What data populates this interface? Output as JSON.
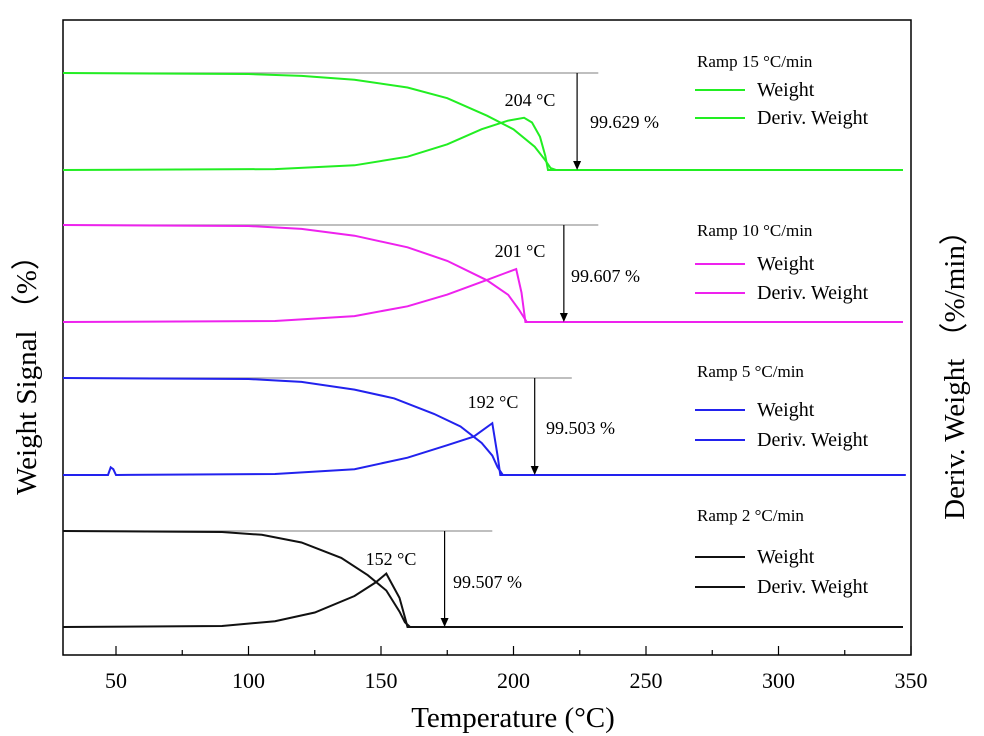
{
  "chart_data": {
    "type": "line",
    "title": "",
    "xlabel": "Temperature (°C)",
    "ylabel_left": "Weight Signal （%）",
    "ylabel_right": "Deriv. Weight （%/min）",
    "xlim": [
      30,
      350
    ],
    "xticks": [
      50,
      100,
      150,
      200,
      250,
      300,
      350
    ],
    "xtick_labels": [
      "50",
      "100",
      "150",
      "200",
      "250",
      "300",
      "350"
    ],
    "grid": false,
    "panels": [
      {
        "id": "ramp15",
        "color": "#22ee22",
        "legend_title": "Ramp 15 °C/min",
        "legend_items": [
          "Weight",
          "Deriv. Weight"
        ],
        "peak_label": "204 °C",
        "loss_label": "99.629 %",
        "weight_xy": [
          [
            30,
            1.0
          ],
          [
            100,
            0.99
          ],
          [
            120,
            0.97
          ],
          [
            140,
            0.93
          ],
          [
            160,
            0.85
          ],
          [
            175,
            0.74
          ],
          [
            190,
            0.56
          ],
          [
            200,
            0.42
          ],
          [
            208,
            0.24
          ],
          [
            212,
            0.1
          ],
          [
            214,
            0.02
          ],
          [
            216,
            0.0
          ],
          [
            347,
            0.0
          ]
        ],
        "deriv_xy": [
          [
            30,
            0.0
          ],
          [
            110,
            0.01
          ],
          [
            140,
            0.05
          ],
          [
            160,
            0.14
          ],
          [
            175,
            0.27
          ],
          [
            188,
            0.43
          ],
          [
            198,
            0.52
          ],
          [
            204,
            0.55
          ],
          [
            207,
            0.5
          ],
          [
            210,
            0.35
          ],
          [
            212,
            0.15
          ],
          [
            213,
            0.0
          ],
          [
            347,
            0.0
          ]
        ],
        "weight_start": 1.0,
        "loss_ref_end_x": 232,
        "arrow_x": 224
      },
      {
        "id": "ramp10",
        "color": "#ee22ee",
        "legend_title": "Ramp 10 °C/min",
        "legend_items": [
          "Weight",
          "Deriv. Weight"
        ],
        "peak_label": "201 °C",
        "loss_label": "99.607 %",
        "weight_xy": [
          [
            30,
            1.0
          ],
          [
            100,
            0.99
          ],
          [
            120,
            0.96
          ],
          [
            140,
            0.89
          ],
          [
            160,
            0.77
          ],
          [
            175,
            0.63
          ],
          [
            190,
            0.43
          ],
          [
            198,
            0.28
          ],
          [
            202,
            0.13
          ],
          [
            205,
            0.0
          ],
          [
            347,
            0.0
          ]
        ],
        "deriv_xy": [
          [
            30,
            0.0
          ],
          [
            110,
            0.01
          ],
          [
            140,
            0.06
          ],
          [
            160,
            0.16
          ],
          [
            175,
            0.28
          ],
          [
            190,
            0.43
          ],
          [
            197,
            0.5
          ],
          [
            201,
            0.54
          ],
          [
            203,
            0.3
          ],
          [
            204.5,
            0.0
          ],
          [
            347,
            0.0
          ]
        ],
        "weight_start": 1.0,
        "loss_ref_end_x": 232,
        "arrow_x": 219
      },
      {
        "id": "ramp5",
        "color": "#2222ee",
        "legend_title": "Ramp 5 °C/min",
        "legend_items": [
          "Weight",
          "Deriv. Weight"
        ],
        "peak_label": "192 °C",
        "loss_label": "99.503 %",
        "weight_xy": [
          [
            30,
            1.0
          ],
          [
            100,
            0.99
          ],
          [
            120,
            0.96
          ],
          [
            140,
            0.88
          ],
          [
            155,
            0.79
          ],
          [
            170,
            0.63
          ],
          [
            180,
            0.5
          ],
          [
            188,
            0.33
          ],
          [
            192,
            0.2
          ],
          [
            194,
            0.08
          ],
          [
            196,
            0.0
          ],
          [
            348,
            0.0
          ]
        ],
        "deriv_xy": [
          [
            30,
            0.0
          ],
          [
            47,
            0.0
          ],
          [
            48,
            0.08
          ],
          [
            49,
            0.06
          ],
          [
            50,
            0.0
          ],
          [
            110,
            0.01
          ],
          [
            140,
            0.06
          ],
          [
            160,
            0.18
          ],
          [
            175,
            0.31
          ],
          [
            185,
            0.4
          ],
          [
            192,
            0.54
          ],
          [
            194,
            0.2
          ],
          [
            195,
            0.0
          ],
          [
            348,
            0.0
          ]
        ],
        "weight_start": 1.0,
        "loss_ref_end_x": 222,
        "arrow_x": 208
      },
      {
        "id": "ramp2",
        "color": "#111111",
        "legend_title": "Ramp 2 °C/min",
        "legend_items": [
          "Weight",
          "Deriv. Weight"
        ],
        "peak_label": "152 °C",
        "loss_label": "99.507 %",
        "weight_xy": [
          [
            30,
            1.0
          ],
          [
            90,
            0.99
          ],
          [
            105,
            0.96
          ],
          [
            120,
            0.88
          ],
          [
            135,
            0.72
          ],
          [
            145,
            0.54
          ],
          [
            152,
            0.38
          ],
          [
            157,
            0.16
          ],
          [
            159,
            0.05
          ],
          [
            161,
            0.0
          ],
          [
            347,
            0.0
          ]
        ],
        "deriv_xy": [
          [
            30,
            0.0
          ],
          [
            90,
            0.01
          ],
          [
            110,
            0.06
          ],
          [
            125,
            0.15
          ],
          [
            140,
            0.32
          ],
          [
            148,
            0.46
          ],
          [
            152,
            0.55
          ],
          [
            154,
            0.45
          ],
          [
            157,
            0.3
          ],
          [
            159,
            0.1
          ],
          [
            160,
            0.0
          ],
          [
            347,
            0.0
          ]
        ],
        "weight_start": 1.0,
        "loss_ref_end_x": 192,
        "arrow_x": 174
      }
    ]
  }
}
